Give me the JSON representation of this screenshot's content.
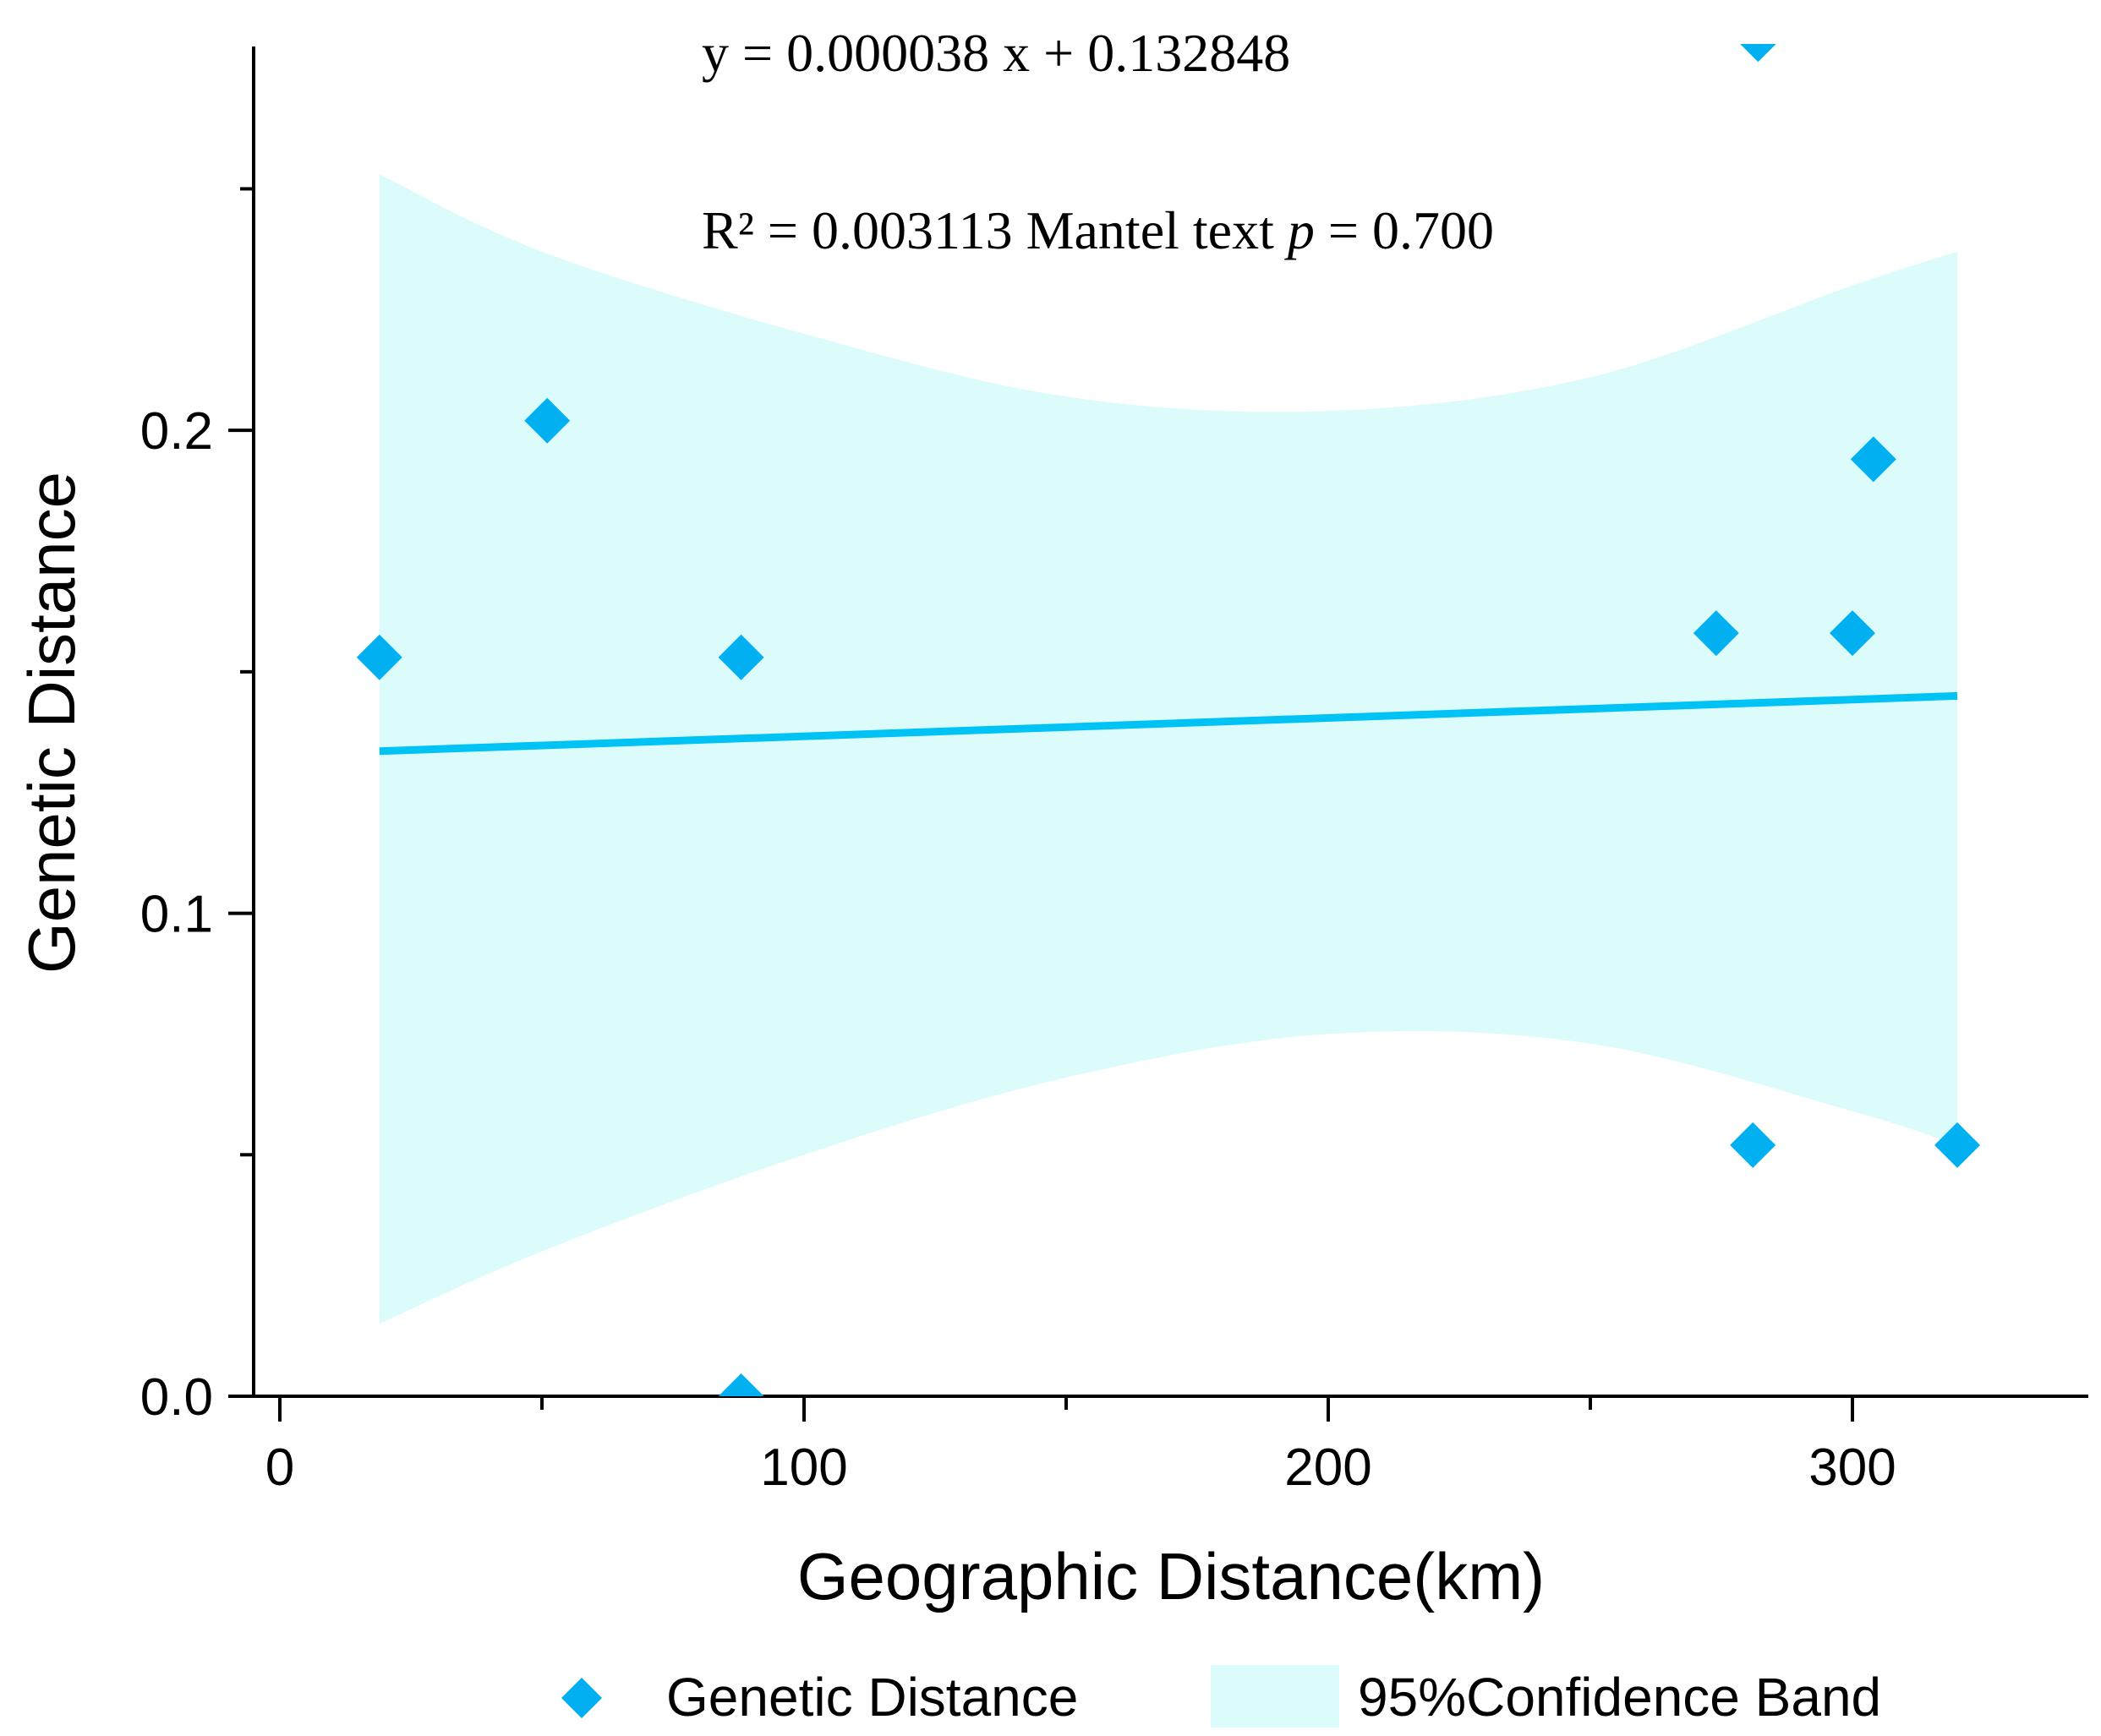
{
  "chart_data": {
    "type": "scatter",
    "xlabel": "Geographic Distance(km)",
    "ylabel": "Genetic Distance",
    "xlim": [
      -5,
      345
    ],
    "ylim": [
      0,
      0.28
    ],
    "x_ticks": [
      0,
      100,
      200,
      300
    ],
    "x_tick_labels": [
      "0",
      "100",
      "200",
      "300"
    ],
    "y_ticks": [
      0.0,
      0.1,
      0.2
    ],
    "y_tick_labels": [
      "0.0",
      "0.1",
      "0.2"
    ],
    "annotations": {
      "equation": "y = 0.000038 x + 0.132848",
      "r2_prefix": "R² = 0.003113 Mantel text ",
      "p_symbol": "p",
      "p_value": " = 0.700"
    },
    "series": [
      {
        "name": "Genetic Distance",
        "type": "scatter",
        "color": "#00B0F0",
        "marker": "diamond",
        "x": [
          19,
          51,
          88,
          88,
          274,
          281,
          282,
          300,
          304,
          320
        ],
        "y": [
          0.153,
          0.202,
          0.153,
          0.0,
          0.158,
          0.052,
          0.281,
          0.158,
          0.194,
          0.052
        ]
      }
    ],
    "fit_line": {
      "slope": 3.8e-05,
      "intercept": 0.132848,
      "x_range": [
        19,
        320
      ],
      "color": "#00C3F5"
    },
    "confidence_band": {
      "name": "95%Confidence Band",
      "color": "#DCFCFC",
      "x": [
        19,
        50,
        100,
        150,
        200,
        250,
        300,
        320
      ],
      "upper": [
        0.253,
        0.237,
        0.22,
        0.207,
        0.204,
        0.211,
        0.23,
        0.237
      ],
      "lower": [
        0.015,
        0.03,
        0.05,
        0.066,
        0.075,
        0.073,
        0.059,
        0.052
      ]
    },
    "legend": {
      "placement": "bottom",
      "items": [
        "Genetic Distance",
        "95%Confidence Band"
      ]
    }
  }
}
